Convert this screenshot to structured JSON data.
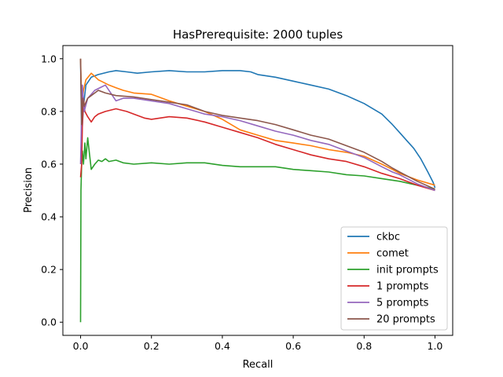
{
  "chart_data": {
    "type": "line",
    "title": "HasPrerequisite: 2000 tuples",
    "xlabel": "Recall",
    "ylabel": "Precision",
    "xlim": [
      -0.05,
      1.05
    ],
    "ylim": [
      -0.05,
      1.05
    ],
    "xticks": [
      "0.0",
      "0.2",
      "0.4",
      "0.6",
      "0.8",
      "1.0"
    ],
    "yticks": [
      "0.0",
      "0.2",
      "0.4",
      "0.6",
      "0.8",
      "1.0"
    ],
    "grid": false,
    "legend_position": "lower-right",
    "series": [
      {
        "name": "ckbc",
        "color": "#1f77b4",
        "points": [
          [
            0.0,
            1.0
          ],
          [
            0.003,
            0.7
          ],
          [
            0.008,
            0.82
          ],
          [
            0.015,
            0.9
          ],
          [
            0.03,
            0.93
          ],
          [
            0.05,
            0.94
          ],
          [
            0.08,
            0.95
          ],
          [
            0.1,
            0.955
          ],
          [
            0.13,
            0.95
          ],
          [
            0.16,
            0.945
          ],
          [
            0.2,
            0.95
          ],
          [
            0.25,
            0.955
          ],
          [
            0.3,
            0.95
          ],
          [
            0.35,
            0.95
          ],
          [
            0.4,
            0.955
          ],
          [
            0.45,
            0.955
          ],
          [
            0.48,
            0.95
          ],
          [
            0.5,
            0.94
          ],
          [
            0.55,
            0.93
          ],
          [
            0.6,
            0.915
          ],
          [
            0.65,
            0.9
          ],
          [
            0.7,
            0.885
          ],
          [
            0.75,
            0.86
          ],
          [
            0.8,
            0.83
          ],
          [
            0.85,
            0.79
          ],
          [
            0.88,
            0.75
          ],
          [
            0.9,
            0.72
          ],
          [
            0.92,
            0.69
          ],
          [
            0.94,
            0.66
          ],
          [
            0.96,
            0.62
          ],
          [
            0.98,
            0.57
          ],
          [
            0.995,
            0.53
          ],
          [
            1.0,
            0.51
          ]
        ]
      },
      {
        "name": "comet",
        "color": "#ff7f0e",
        "points": [
          [
            0.0,
            1.0
          ],
          [
            0.003,
            0.82
          ],
          [
            0.008,
            0.88
          ],
          [
            0.015,
            0.92
          ],
          [
            0.03,
            0.945
          ],
          [
            0.05,
            0.92
          ],
          [
            0.08,
            0.9
          ],
          [
            0.1,
            0.89
          ],
          [
            0.12,
            0.88
          ],
          [
            0.15,
            0.87
          ],
          [
            0.2,
            0.865
          ],
          [
            0.22,
            0.855
          ],
          [
            0.25,
            0.84
          ],
          [
            0.3,
            0.82
          ],
          [
            0.35,
            0.8
          ],
          [
            0.4,
            0.77
          ],
          [
            0.45,
            0.73
          ],
          [
            0.5,
            0.71
          ],
          [
            0.55,
            0.69
          ],
          [
            0.6,
            0.68
          ],
          [
            0.65,
            0.67
          ],
          [
            0.7,
            0.655
          ],
          [
            0.75,
            0.645
          ],
          [
            0.8,
            0.63
          ],
          [
            0.85,
            0.6
          ],
          [
            0.88,
            0.58
          ],
          [
            0.9,
            0.565
          ],
          [
            0.95,
            0.54
          ],
          [
            1.0,
            0.52
          ]
        ]
      },
      {
        "name": "init prompts",
        "color": "#2ca02c",
        "points": [
          [
            0.0,
            0.0
          ],
          [
            0.001,
            0.5
          ],
          [
            0.003,
            0.6
          ],
          [
            0.005,
            0.65
          ],
          [
            0.008,
            0.6
          ],
          [
            0.012,
            0.68
          ],
          [
            0.015,
            0.62
          ],
          [
            0.02,
            0.7
          ],
          [
            0.025,
            0.64
          ],
          [
            0.03,
            0.58
          ],
          [
            0.04,
            0.6
          ],
          [
            0.05,
            0.615
          ],
          [
            0.06,
            0.61
          ],
          [
            0.07,
            0.62
          ],
          [
            0.08,
            0.61
          ],
          [
            0.1,
            0.615
          ],
          [
            0.12,
            0.605
          ],
          [
            0.15,
            0.6
          ],
          [
            0.2,
            0.605
          ],
          [
            0.25,
            0.6
          ],
          [
            0.3,
            0.605
          ],
          [
            0.35,
            0.605
          ],
          [
            0.4,
            0.595
          ],
          [
            0.45,
            0.59
          ],
          [
            0.5,
            0.59
          ],
          [
            0.55,
            0.59
          ],
          [
            0.6,
            0.58
          ],
          [
            0.65,
            0.575
          ],
          [
            0.7,
            0.57
          ],
          [
            0.75,
            0.56
          ],
          [
            0.8,
            0.555
          ],
          [
            0.85,
            0.545
          ],
          [
            0.9,
            0.535
          ],
          [
            0.95,
            0.52
          ],
          [
            1.0,
            0.505
          ]
        ]
      },
      {
        "name": "1 prompts",
        "color": "#d62728",
        "points": [
          [
            0.0,
            0.55
          ],
          [
            0.003,
            0.6
          ],
          [
            0.005,
            0.75
          ],
          [
            0.008,
            0.85
          ],
          [
            0.012,
            0.8
          ],
          [
            0.02,
            0.78
          ],
          [
            0.03,
            0.76
          ],
          [
            0.04,
            0.78
          ],
          [
            0.05,
            0.79
          ],
          [
            0.07,
            0.8
          ],
          [
            0.1,
            0.81
          ],
          [
            0.13,
            0.8
          ],
          [
            0.15,
            0.79
          ],
          [
            0.18,
            0.775
          ],
          [
            0.2,
            0.77
          ],
          [
            0.25,
            0.78
          ],
          [
            0.3,
            0.775
          ],
          [
            0.35,
            0.76
          ],
          [
            0.4,
            0.74
          ],
          [
            0.45,
            0.72
          ],
          [
            0.5,
            0.7
          ],
          [
            0.55,
            0.675
          ],
          [
            0.6,
            0.655
          ],
          [
            0.65,
            0.635
          ],
          [
            0.7,
            0.62
          ],
          [
            0.75,
            0.61
          ],
          [
            0.8,
            0.59
          ],
          [
            0.85,
            0.565
          ],
          [
            0.9,
            0.545
          ],
          [
            0.95,
            0.52
          ],
          [
            1.0,
            0.5
          ]
        ]
      },
      {
        "name": "5 prompts",
        "color": "#9467bd",
        "points": [
          [
            0.0,
            0.6
          ],
          [
            0.003,
            0.8
          ],
          [
            0.005,
            0.9
          ],
          [
            0.01,
            0.8
          ],
          [
            0.02,
            0.85
          ],
          [
            0.04,
            0.88
          ],
          [
            0.07,
            0.9
          ],
          [
            0.09,
            0.86
          ],
          [
            0.1,
            0.84
          ],
          [
            0.12,
            0.85
          ],
          [
            0.15,
            0.85
          ],
          [
            0.2,
            0.84
          ],
          [
            0.25,
            0.83
          ],
          [
            0.3,
            0.81
          ],
          [
            0.35,
            0.79
          ],
          [
            0.4,
            0.78
          ],
          [
            0.45,
            0.765
          ],
          [
            0.5,
            0.745
          ],
          [
            0.55,
            0.725
          ],
          [
            0.6,
            0.71
          ],
          [
            0.65,
            0.69
          ],
          [
            0.7,
            0.675
          ],
          [
            0.75,
            0.65
          ],
          [
            0.8,
            0.625
          ],
          [
            0.85,
            0.59
          ],
          [
            0.88,
            0.57
          ],
          [
            0.9,
            0.56
          ],
          [
            0.95,
            0.525
          ],
          [
            1.0,
            0.5
          ]
        ]
      },
      {
        "name": "20 prompts",
        "color": "#8c564b",
        "points": [
          [
            0.0,
            1.0
          ],
          [
            0.003,
            0.75
          ],
          [
            0.006,
            0.85
          ],
          [
            0.01,
            0.82
          ],
          [
            0.02,
            0.85
          ],
          [
            0.03,
            0.86
          ],
          [
            0.05,
            0.88
          ],
          [
            0.07,
            0.87
          ],
          [
            0.1,
            0.86
          ],
          [
            0.15,
            0.855
          ],
          [
            0.2,
            0.845
          ],
          [
            0.25,
            0.835
          ],
          [
            0.3,
            0.825
          ],
          [
            0.35,
            0.8
          ],
          [
            0.4,
            0.785
          ],
          [
            0.45,
            0.775
          ],
          [
            0.5,
            0.765
          ],
          [
            0.55,
            0.75
          ],
          [
            0.6,
            0.73
          ],
          [
            0.65,
            0.71
          ],
          [
            0.7,
            0.695
          ],
          [
            0.75,
            0.67
          ],
          [
            0.8,
            0.645
          ],
          [
            0.85,
            0.61
          ],
          [
            0.88,
            0.585
          ],
          [
            0.9,
            0.57
          ],
          [
            0.95,
            0.535
          ],
          [
            1.0,
            0.505
          ]
        ]
      }
    ]
  }
}
